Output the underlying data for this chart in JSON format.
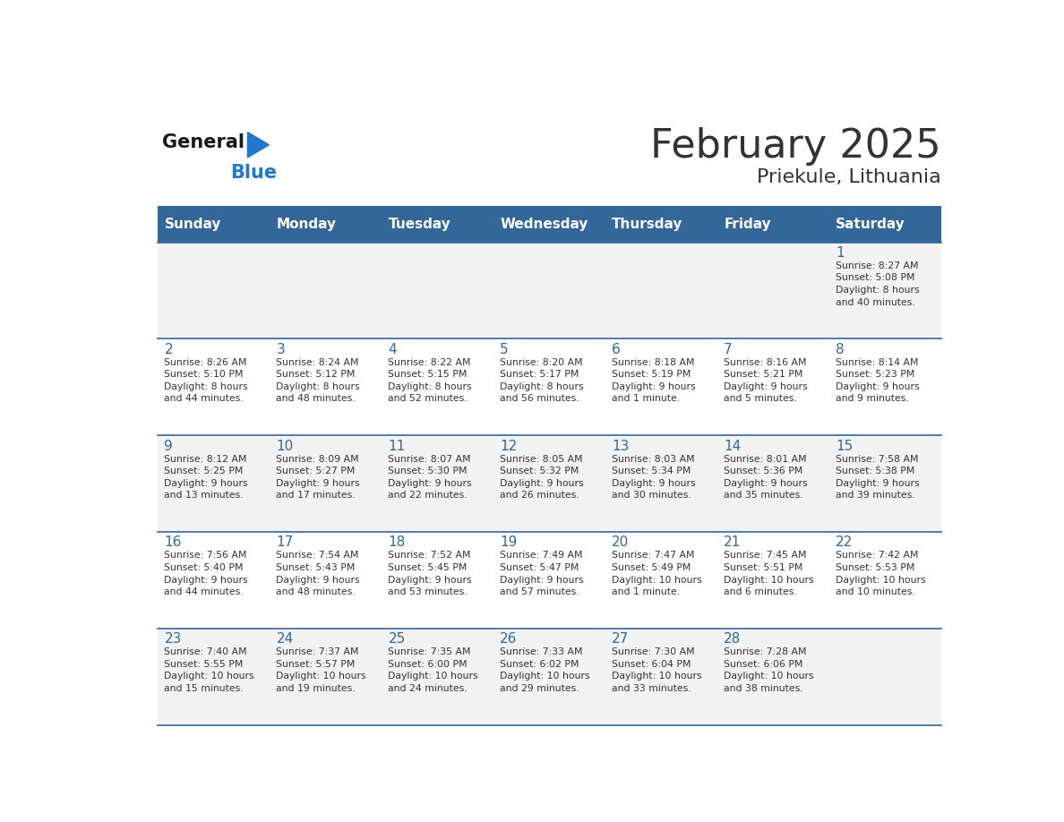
{
  "title": "February 2025",
  "subtitle": "Priekule, Lithuania",
  "days_of_week": [
    "Sunday",
    "Monday",
    "Tuesday",
    "Wednesday",
    "Thursday",
    "Friday",
    "Saturday"
  ],
  "header_bg": "#336699",
  "header_text_color": "#ffffff",
  "cell_bg_even": "#f2f2f2",
  "cell_bg_odd": "#ffffff",
  "day_num_color": "#336699",
  "text_color": "#333333",
  "border_color": "#336699",
  "logo_general_color": "#1a1a1a",
  "logo_blue_color": "#2277cc",
  "weeks": [
    [
      {
        "day": null,
        "info": null
      },
      {
        "day": null,
        "info": null
      },
      {
        "day": null,
        "info": null
      },
      {
        "day": null,
        "info": null
      },
      {
        "day": null,
        "info": null
      },
      {
        "day": null,
        "info": null
      },
      {
        "day": 1,
        "info": "Sunrise: 8:27 AM\nSunset: 5:08 PM\nDaylight: 8 hours\nand 40 minutes."
      }
    ],
    [
      {
        "day": 2,
        "info": "Sunrise: 8:26 AM\nSunset: 5:10 PM\nDaylight: 8 hours\nand 44 minutes."
      },
      {
        "day": 3,
        "info": "Sunrise: 8:24 AM\nSunset: 5:12 PM\nDaylight: 8 hours\nand 48 minutes."
      },
      {
        "day": 4,
        "info": "Sunrise: 8:22 AM\nSunset: 5:15 PM\nDaylight: 8 hours\nand 52 minutes."
      },
      {
        "day": 5,
        "info": "Sunrise: 8:20 AM\nSunset: 5:17 PM\nDaylight: 8 hours\nand 56 minutes."
      },
      {
        "day": 6,
        "info": "Sunrise: 8:18 AM\nSunset: 5:19 PM\nDaylight: 9 hours\nand 1 minute."
      },
      {
        "day": 7,
        "info": "Sunrise: 8:16 AM\nSunset: 5:21 PM\nDaylight: 9 hours\nand 5 minutes."
      },
      {
        "day": 8,
        "info": "Sunrise: 8:14 AM\nSunset: 5:23 PM\nDaylight: 9 hours\nand 9 minutes."
      }
    ],
    [
      {
        "day": 9,
        "info": "Sunrise: 8:12 AM\nSunset: 5:25 PM\nDaylight: 9 hours\nand 13 minutes."
      },
      {
        "day": 10,
        "info": "Sunrise: 8:09 AM\nSunset: 5:27 PM\nDaylight: 9 hours\nand 17 minutes."
      },
      {
        "day": 11,
        "info": "Sunrise: 8:07 AM\nSunset: 5:30 PM\nDaylight: 9 hours\nand 22 minutes."
      },
      {
        "day": 12,
        "info": "Sunrise: 8:05 AM\nSunset: 5:32 PM\nDaylight: 9 hours\nand 26 minutes."
      },
      {
        "day": 13,
        "info": "Sunrise: 8:03 AM\nSunset: 5:34 PM\nDaylight: 9 hours\nand 30 minutes."
      },
      {
        "day": 14,
        "info": "Sunrise: 8:01 AM\nSunset: 5:36 PM\nDaylight: 9 hours\nand 35 minutes."
      },
      {
        "day": 15,
        "info": "Sunrise: 7:58 AM\nSunset: 5:38 PM\nDaylight: 9 hours\nand 39 minutes."
      }
    ],
    [
      {
        "day": 16,
        "info": "Sunrise: 7:56 AM\nSunset: 5:40 PM\nDaylight: 9 hours\nand 44 minutes."
      },
      {
        "day": 17,
        "info": "Sunrise: 7:54 AM\nSunset: 5:43 PM\nDaylight: 9 hours\nand 48 minutes."
      },
      {
        "day": 18,
        "info": "Sunrise: 7:52 AM\nSunset: 5:45 PM\nDaylight: 9 hours\nand 53 minutes."
      },
      {
        "day": 19,
        "info": "Sunrise: 7:49 AM\nSunset: 5:47 PM\nDaylight: 9 hours\nand 57 minutes."
      },
      {
        "day": 20,
        "info": "Sunrise: 7:47 AM\nSunset: 5:49 PM\nDaylight: 10 hours\nand 1 minute."
      },
      {
        "day": 21,
        "info": "Sunrise: 7:45 AM\nSunset: 5:51 PM\nDaylight: 10 hours\nand 6 minutes."
      },
      {
        "day": 22,
        "info": "Sunrise: 7:42 AM\nSunset: 5:53 PM\nDaylight: 10 hours\nand 10 minutes."
      }
    ],
    [
      {
        "day": 23,
        "info": "Sunrise: 7:40 AM\nSunset: 5:55 PM\nDaylight: 10 hours\nand 15 minutes."
      },
      {
        "day": 24,
        "info": "Sunrise: 7:37 AM\nSunset: 5:57 PM\nDaylight: 10 hours\nand 19 minutes."
      },
      {
        "day": 25,
        "info": "Sunrise: 7:35 AM\nSunset: 6:00 PM\nDaylight: 10 hours\nand 24 minutes."
      },
      {
        "day": 26,
        "info": "Sunrise: 7:33 AM\nSunset: 6:02 PM\nDaylight: 10 hours\nand 29 minutes."
      },
      {
        "day": 27,
        "info": "Sunrise: 7:30 AM\nSunset: 6:04 PM\nDaylight: 10 hours\nand 33 minutes."
      },
      {
        "day": 28,
        "info": "Sunrise: 7:28 AM\nSunset: 6:06 PM\nDaylight: 10 hours\nand 38 minutes."
      },
      {
        "day": null,
        "info": null
      }
    ]
  ]
}
